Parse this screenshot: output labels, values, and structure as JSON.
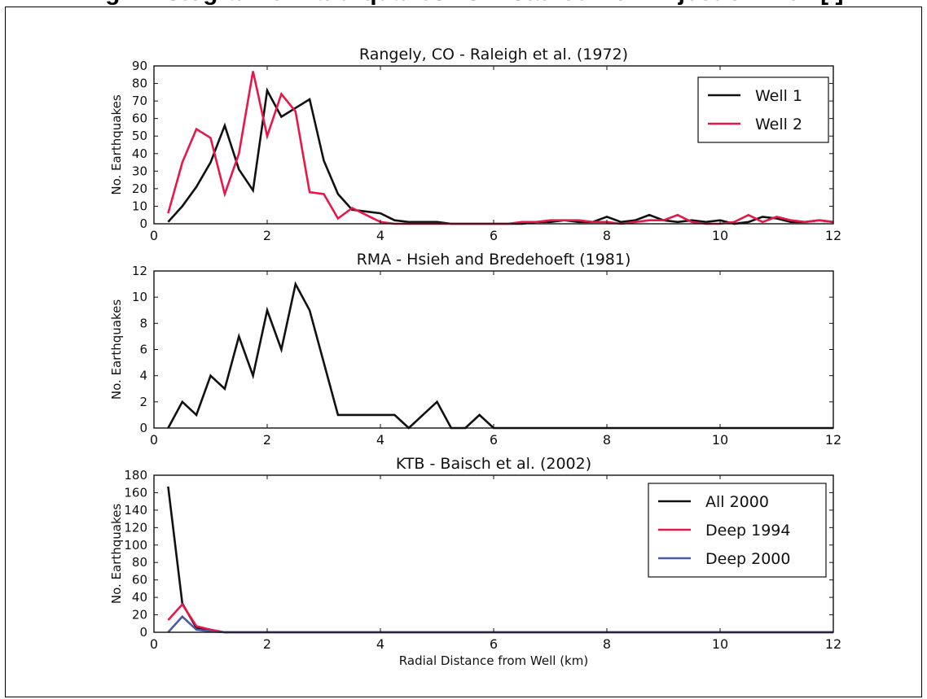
{
  "header": {
    "clipped_title": "Fig    -                        Histogram of Earthquakes vs Distance from Injection Well [     ]"
  },
  "colors": {
    "black": "#111111",
    "red": "#e8174a",
    "blue": "#4a5aa8"
  },
  "chart_data": [
    {
      "type": "line",
      "title": "Rangely, CO - Raleigh et al. (1972)",
      "xlabel": "",
      "ylabel": "No. Earthquakes",
      "xlim": [
        0,
        12
      ],
      "ylim": [
        0,
        90
      ],
      "xticks": [
        0,
        2,
        4,
        6,
        8,
        10,
        12
      ],
      "yticks": [
        0,
        10,
        20,
        30,
        40,
        50,
        60,
        70,
        80,
        90
      ],
      "legend": "top-right",
      "series": [
        {
          "name": "Well 1",
          "color": "black",
          "x": [
            0.25,
            0.5,
            0.75,
            1,
            1.25,
            1.5,
            1.75,
            2,
            2.25,
            2.5,
            2.75,
            3,
            3.25,
            3.5,
            3.75,
            4,
            4.25,
            4.5,
            4.75,
            5,
            5.25,
            5.5,
            5.75,
            6,
            6.25,
            6.5,
            6.75,
            7,
            7.25,
            7.5,
            7.75,
            8,
            8.25,
            8.5,
            8.75,
            9,
            9.25,
            9.5,
            9.75,
            10,
            10.25,
            10.5,
            10.75,
            11,
            11.25,
            11.5,
            11.75,
            12
          ],
          "y": [
            1,
            10,
            21,
            35,
            56,
            31,
            19,
            76,
            61,
            66,
            71,
            36,
            17,
            8,
            7,
            6,
            2,
            1,
            1,
            1,
            0,
            0,
            0,
            0,
            0,
            0,
            1,
            1,
            2,
            1,
            1,
            4,
            1,
            2,
            5,
            2,
            1,
            2,
            1,
            2,
            0,
            1,
            4,
            3,
            1,
            1,
            2,
            1
          ]
        },
        {
          "name": "Well 2",
          "color": "red",
          "x": [
            0.25,
            0.5,
            0.75,
            1,
            1.25,
            1.5,
            1.75,
            2,
            2.25,
            2.5,
            2.75,
            3,
            3.25,
            3.5,
            3.75,
            4,
            4.25,
            4.5,
            4.75,
            5,
            5.25,
            5.5,
            5.75,
            6,
            6.25,
            6.5,
            6.75,
            7,
            7.25,
            7.5,
            7.75,
            8,
            8.25,
            8.5,
            8.75,
            9,
            9.25,
            9.5,
            9.75,
            10,
            10.25,
            10.5,
            10.75,
            11,
            11.25,
            11.5,
            11.75,
            12
          ],
          "y": [
            6,
            35,
            54,
            49,
            17,
            40,
            87,
            50,
            74,
            64,
            18,
            17,
            3,
            9,
            5,
            1,
            0,
            0,
            0,
            0,
            0,
            0,
            0,
            0,
            0,
            1,
            1,
            2,
            2,
            2,
            1,
            1,
            0,
            1,
            2,
            2,
            5,
            1,
            0,
            0,
            1,
            5,
            1,
            4,
            2,
            1,
            2,
            1
          ]
        }
      ]
    },
    {
      "type": "line",
      "title": "RMA - Hsieh and Bredehoeft (1981)",
      "xlabel": "",
      "ylabel": "No. Earthquakes",
      "xlim": [
        0,
        12
      ],
      "ylim": [
        0,
        12
      ],
      "xticks": [
        0,
        2,
        4,
        6,
        8,
        10,
        12
      ],
      "yticks": [
        0,
        2,
        4,
        6,
        8,
        10,
        12
      ],
      "series": [
        {
          "name": "",
          "color": "black",
          "x": [
            0.25,
            0.5,
            0.75,
            1,
            1.25,
            1.5,
            1.75,
            2,
            2.25,
            2.5,
            2.75,
            3,
            3.25,
            3.5,
            3.75,
            4,
            4.25,
            4.5,
            4.75,
            5,
            5.25,
            5.5,
            5.75,
            6,
            6.25,
            6.5,
            7,
            8,
            9,
            10,
            11,
            12
          ],
          "y": [
            0,
            2,
            1,
            4,
            3,
            7,
            4,
            9,
            6,
            11,
            9,
            5,
            1,
            1,
            1,
            1,
            1,
            0,
            1,
            2,
            0,
            0,
            1,
            0,
            0,
            0,
            0,
            0,
            0,
            0,
            0,
            0
          ]
        }
      ]
    },
    {
      "type": "line",
      "title": "KTB - Baisch et al. (2002)",
      "xlabel": "Radial Distance from Well (km)",
      "ylabel": "No. Earthquakes",
      "xlim": [
        0,
        12
      ],
      "ylim": [
        0,
        180
      ],
      "xticks": [
        0,
        2,
        4,
        6,
        8,
        10,
        12
      ],
      "yticks": [
        0,
        20,
        40,
        60,
        80,
        100,
        120,
        140,
        160,
        180
      ],
      "legend": "top-right",
      "series": [
        {
          "name": "All 2000",
          "color": "black",
          "x": [
            0.25,
            0.5,
            0.75,
            1,
            1.25,
            1.5,
            2,
            3,
            4,
            5,
            6,
            7,
            8,
            9,
            10,
            11,
            12
          ],
          "y": [
            167,
            33,
            5,
            2,
            0,
            0,
            0,
            0,
            0,
            0,
            0,
            0,
            0,
            0,
            0,
            0,
            0
          ]
        },
        {
          "name": "Deep 1994",
          "color": "red",
          "x": [
            0.25,
            0.5,
            0.75,
            1,
            1.25,
            1.5,
            2,
            3,
            4,
            5,
            6,
            7,
            8,
            9,
            10,
            11,
            12
          ],
          "y": [
            14,
            32,
            7,
            3,
            0,
            0,
            0,
            0,
            0,
            0,
            0,
            0,
            0,
            0,
            0,
            0,
            0
          ]
        },
        {
          "name": "Deep 2000",
          "color": "blue",
          "x": [
            0.25,
            0.5,
            0.75,
            1,
            1.25,
            1.5,
            2,
            3,
            4,
            5,
            6,
            7,
            8,
            9,
            10,
            11,
            12
          ],
          "y": [
            0,
            18,
            3,
            1,
            0,
            0,
            0,
            0,
            0,
            0,
            0,
            0,
            0,
            0,
            0,
            0,
            0
          ]
        }
      ]
    }
  ]
}
